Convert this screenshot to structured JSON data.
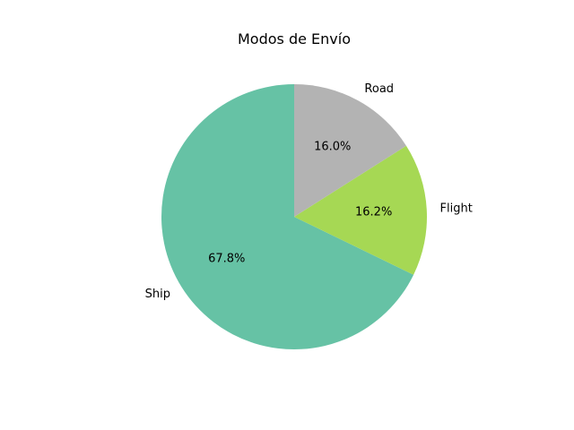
{
  "chart_data": {
    "type": "pie",
    "title": "Modos de Envío",
    "categories": [
      "Ship",
      "Flight",
      "Road"
    ],
    "values": [
      67.8,
      16.2,
      16.0
    ],
    "value_labels": [
      "67.8%",
      "16.2%",
      "16.0%"
    ],
    "colors": [
      "#66c2a5",
      "#a6d854",
      "#b3b3b3"
    ],
    "start_angle_deg": 90,
    "direction": "counterclockwise",
    "legend": "none"
  }
}
